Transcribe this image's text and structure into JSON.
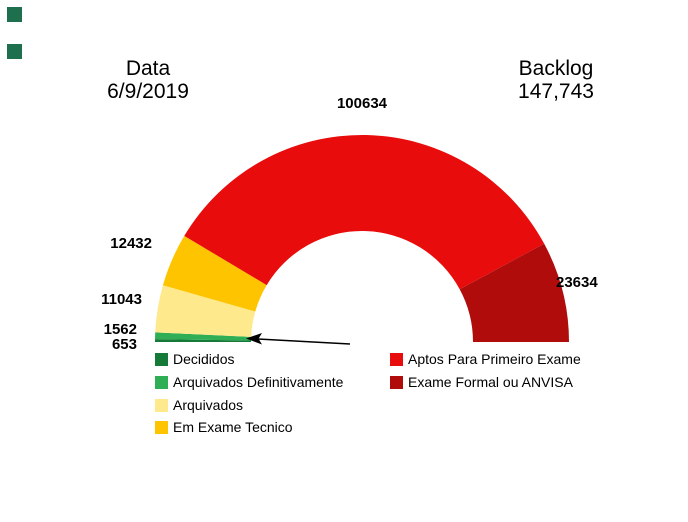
{
  "chart_data": {
    "type": "pie",
    "variant": "half-donut-gauge",
    "header": {
      "date_label": "Data",
      "date_value": "6/9/2019",
      "backlog_label": "Backlog",
      "backlog_value": "147,743"
    },
    "segments": [
      {
        "label": "Decididos",
        "value": 653,
        "value_label": "653",
        "color": "#157a38"
      },
      {
        "label": "Arquivados Definitivamente",
        "value": 1562,
        "value_label": "1562",
        "color": "#2fae55"
      },
      {
        "label": "Arquivados",
        "value": 11043,
        "value_label": "11043",
        "color": "#ffe98d"
      },
      {
        "label": "Em Exame Tecnico",
        "value": 12432,
        "value_label": "12432",
        "color": "#ffc400"
      },
      {
        "label": "Aptos Para Primeiro Exame",
        "value": 100634,
        "value_label": "100634",
        "color": "#e90c0c"
      },
      {
        "label": "Exame Formal ou ANVISA",
        "value": 23634,
        "value_label": "23634",
        "color": "#b10c0c"
      }
    ],
    "legend_position": "bottom",
    "start_angle_deg": 180,
    "end_angle_deg": 0
  },
  "decor": {
    "square_color": "#1d6f4e"
  }
}
